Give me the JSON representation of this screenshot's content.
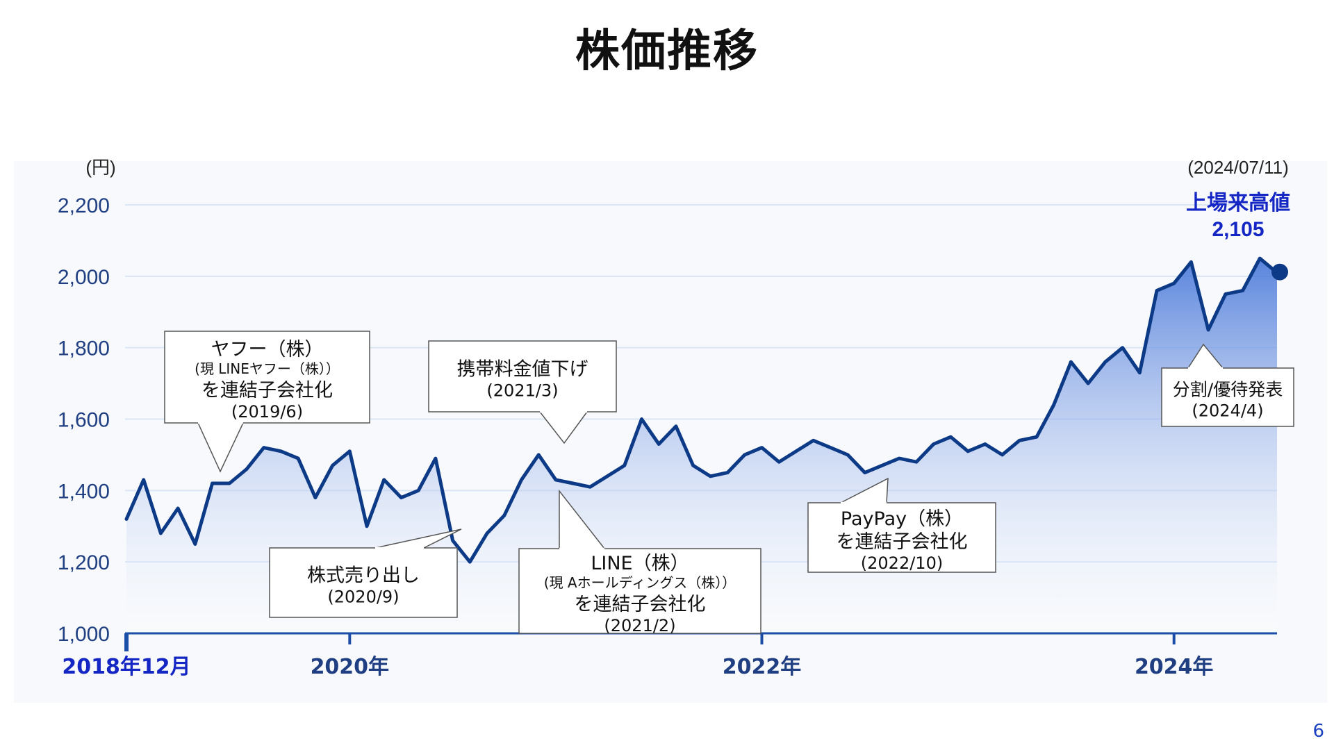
{
  "page": {
    "title": "株価推移",
    "page_number": "6"
  },
  "colors": {
    "line": "#0d3a86",
    "area_top": "#3d6fd6",
    "axis": "#1c4ea8",
    "tick_label": "#1f3f82",
    "highlight": "#1426c4",
    "grid": "#dbe6f4",
    "plot_bg": "#f7f9fc"
  },
  "chart_data": {
    "type": "area",
    "title": "株価推移",
    "ylabel": "(円)",
    "ylim": [
      1000,
      2200
    ],
    "yticks": [
      1000,
      1200,
      1400,
      1600,
      1800,
      2000,
      2200
    ],
    "ytick_labels": [
      "1,000",
      "1,200",
      "1,400",
      "1,600",
      "1,800",
      "2,000",
      "2,200"
    ],
    "x_start": "2018-12",
    "x_end": "2024-07",
    "xticks": [
      {
        "date": "2018-12",
        "label": "2018年12月"
      },
      {
        "date": "2020-01",
        "label": "2020年"
      },
      {
        "date": "2022-01",
        "label": "2022年"
      },
      {
        "date": "2024-01",
        "label": "2024年"
      }
    ],
    "grid": true,
    "series": [
      {
        "x": [
          "2018-12",
          "2019-01",
          "2019-02",
          "2019-03",
          "2019-04",
          "2019-05",
          "2019-06",
          "2019-07",
          "2019-08",
          "2019-09",
          "2019-10",
          "2019-11",
          "2019-12",
          "2020-01",
          "2020-02",
          "2020-03",
          "2020-04",
          "2020-05",
          "2020-06",
          "2020-07",
          "2020-08",
          "2020-09",
          "2020-10",
          "2020-11",
          "2020-12",
          "2021-01",
          "2021-02",
          "2021-03",
          "2021-04",
          "2021-05",
          "2021-06",
          "2021-07",
          "2021-08",
          "2021-09",
          "2021-10",
          "2021-11",
          "2021-12",
          "2022-01",
          "2022-02",
          "2022-03",
          "2022-04",
          "2022-05",
          "2022-06",
          "2022-07",
          "2022-08",
          "2022-09",
          "2022-10",
          "2022-11",
          "2022-12",
          "2023-01",
          "2023-02",
          "2023-03",
          "2023-04",
          "2023-05",
          "2023-06",
          "2023-07",
          "2023-08",
          "2023-09",
          "2023-10",
          "2023-11",
          "2023-12",
          "2024-01",
          "2024-02",
          "2024-03",
          "2024-04",
          "2024-05",
          "2024-06",
          "2024-07"
        ],
        "values": [
          1320,
          1430,
          1280,
          1350,
          1250,
          1420,
          1420,
          1460,
          1520,
          1510,
          1490,
          1380,
          1470,
          1510,
          1300,
          1430,
          1380,
          1400,
          1490,
          1260,
          1200,
          1280,
          1330,
          1430,
          1500,
          1430,
          1420,
          1410,
          1440,
          1470,
          1600,
          1530,
          1580,
          1470,
          1440,
          1450,
          1500,
          1520,
          1480,
          1510,
          1540,
          1520,
          1500,
          1450,
          1470,
          1490,
          1480,
          1530,
          1550,
          1510,
          1530,
          1500,
          1540,
          1550,
          1640,
          1760,
          1700,
          1760,
          1800,
          1730,
          1960,
          1980,
          2040,
          1850,
          1950,
          1960,
          2050,
          2010
        ]
      }
    ],
    "annotations": [
      {
        "lines": [
          "ヤフー（株）",
          "(現 LINEヤフー（株））",
          "を連結子会社化",
          "(2019/6)"
        ]
      },
      {
        "lines": [
          "株式売り出し",
          "(2020/9)"
        ]
      },
      {
        "lines": [
          "携帯料金値下げ",
          "(2021/3)"
        ]
      },
      {
        "lines": [
          "LINE（株）",
          "(現 Aホールディングス（株））",
          "を連結子会社化",
          "(2021/2)"
        ]
      },
      {
        "lines": [
          "PayPay（株）",
          "を連結子会社化",
          "(2022/10)"
        ]
      },
      {
        "lines": [
          "分割/優待発表",
          "(2024/4)"
        ]
      }
    ],
    "highlight": {
      "date_label": "(2024/07/11)",
      "label": "上場来高値",
      "value_label": "2,105"
    }
  }
}
